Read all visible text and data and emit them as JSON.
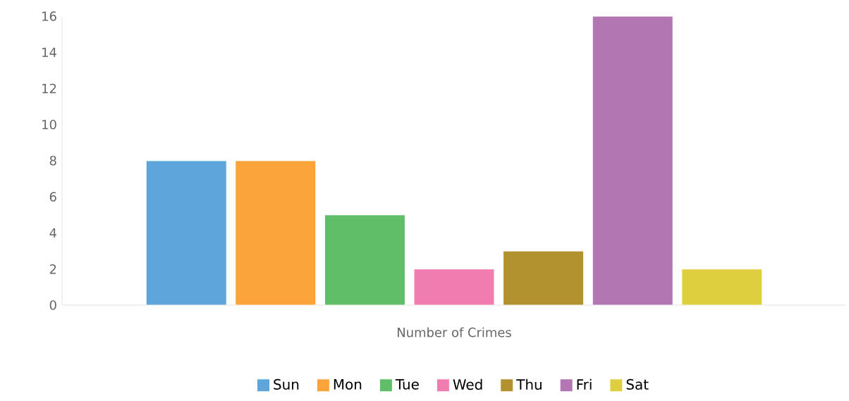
{
  "chart_data": {
    "type": "bar",
    "categories": [
      "Number of Crimes"
    ],
    "series": [
      {
        "name": "Sun",
        "color": "#5da5da",
        "values": [
          8
        ]
      },
      {
        "name": "Mon",
        "color": "#faa43a",
        "values": [
          8
        ]
      },
      {
        "name": "Tue",
        "color": "#60bd68",
        "values": [
          5
        ]
      },
      {
        "name": "Wed",
        "color": "#f17cb0",
        "values": [
          2
        ]
      },
      {
        "name": "Thu",
        "color": "#b2912f",
        "values": [
          3
        ]
      },
      {
        "name": "Fri",
        "color": "#b276b2",
        "values": [
          16
        ]
      },
      {
        "name": "Sat",
        "color": "#decf3f",
        "values": [
          2
        ]
      }
    ],
    "ylim": [
      0,
      16
    ],
    "yticks": [
      0,
      2,
      4,
      6,
      8,
      10,
      12,
      14,
      16
    ],
    "grid": false,
    "legend": "bottom"
  }
}
